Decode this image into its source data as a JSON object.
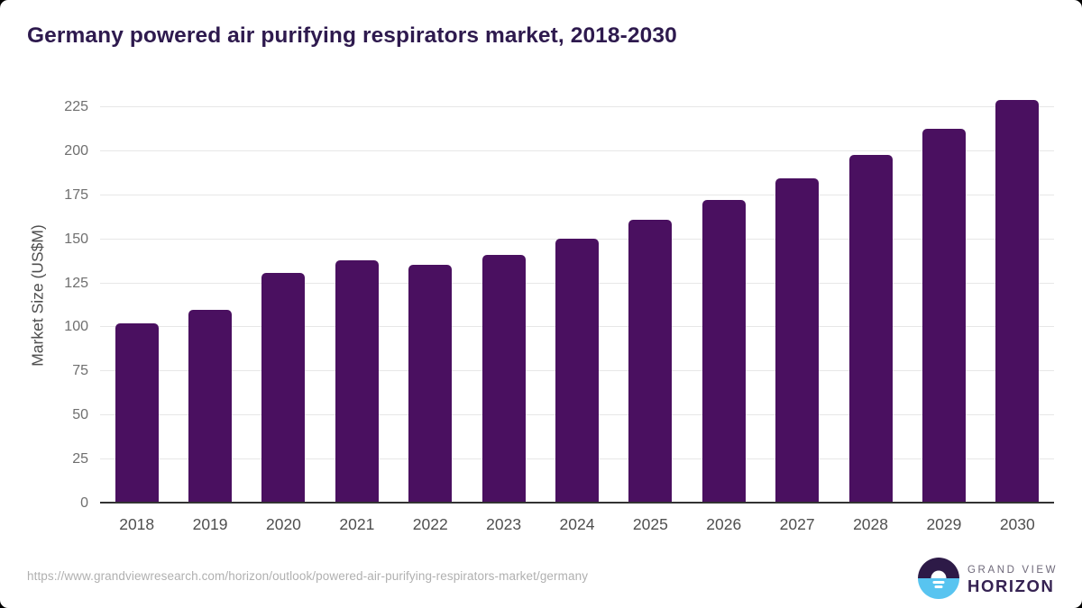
{
  "page": {
    "title": "Germany powered air purifying respirators market, 2018-2030"
  },
  "chart_data": {
    "type": "bar",
    "title": "Germany powered air purifying respirators market, 2018-2030",
    "categories": [
      "2018",
      "2019",
      "2020",
      "2021",
      "2022",
      "2023",
      "2024",
      "2025",
      "2026",
      "2027",
      "2028",
      "2029",
      "2030"
    ],
    "values": [
      102.4,
      109.9,
      130.9,
      137.9,
      135.6,
      141.0,
      150.6,
      161.1,
      172.1,
      184.4,
      197.9,
      212.8,
      229.3
    ],
    "xlabel": "",
    "ylabel": "Market Size (US$M)",
    "ylim": [
      0,
      225
    ],
    "ytick_step": 25,
    "grid": "horizontal",
    "legend": "none",
    "bar_color": "#4a1060"
  },
  "footer": {
    "source_url": "https://www.grandviewresearch.com/horizon/outlook/powered-air-purifying-respirators-market/germany",
    "logo": {
      "line1": "GRAND VIEW",
      "line2": "HORIZON",
      "icon": "horizon-sunrise-icon"
    }
  },
  "colors": {
    "title": "#2e1a4e",
    "bar": "#4a1060",
    "gridline": "#e7e7e7",
    "axis_line": "#333333",
    "tick_label": "#6f6f6f",
    "x_label": "#4f4f4f",
    "axis_title": "#4f4f4f",
    "url": "#b0b0b0",
    "logo_dark": "#352252",
    "logo_gray": "#6e6879",
    "logo_icon_top": "#2d1a47",
    "logo_icon_bottom": "#58c4f0"
  }
}
